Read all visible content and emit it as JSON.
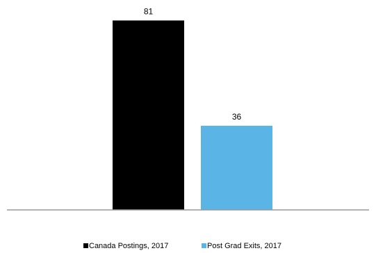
{
  "chart_data": {
    "type": "bar",
    "categories": [
      null
    ],
    "series": [
      {
        "name": "Canada Postings, 2017",
        "color": "#000000",
        "values": [
          81
        ]
      },
      {
        "name": "Post Grad Exits, 2017",
        "color": "#5ab4e5",
        "values": [
          36
        ]
      }
    ],
    "ylim": [
      0,
      85
    ],
    "legend": "bottom"
  }
}
